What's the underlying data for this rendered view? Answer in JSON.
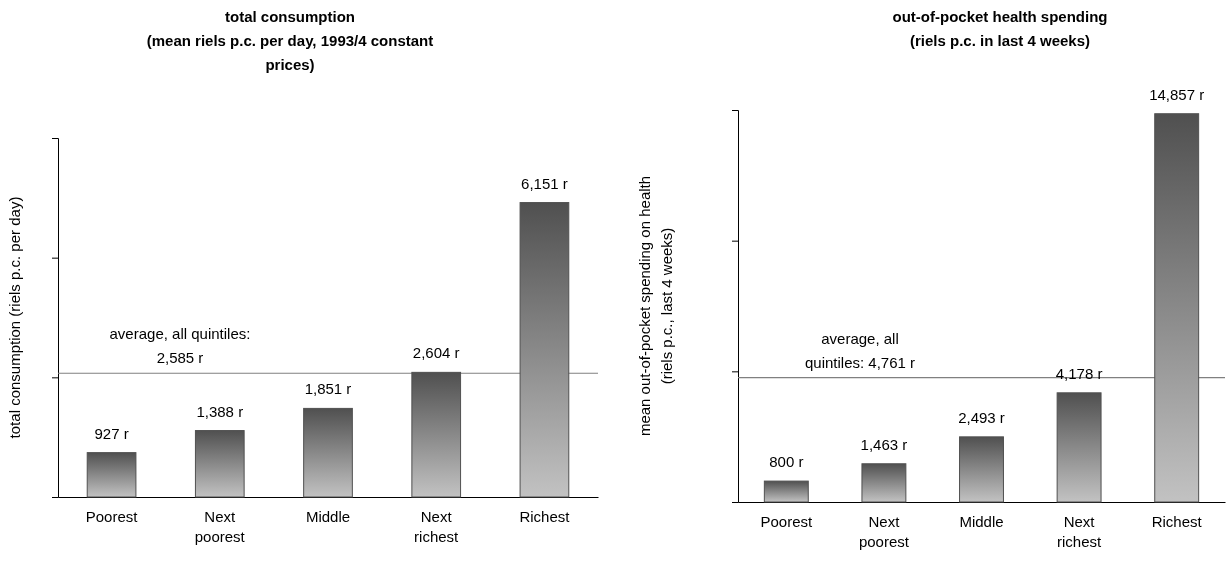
{
  "chart_data": [
    {
      "type": "bar",
      "title": "total consumption\n(mean riels p.c. per day, 1993/4 constant\nprices)",
      "ylabel": "total consumption (riels p.c. per day)",
      "categories": [
        "Poorest",
        "Next poorest",
        "Middle",
        "Next richest",
        "Richest"
      ],
      "values": [
        927,
        1388,
        1851,
        2604,
        6151
      ],
      "value_labels": [
        "927 r",
        "1,388 r",
        "1,851 r",
        "2,604 r",
        "6,151 r"
      ],
      "color": "#505050",
      "ylim": [
        0,
        7500
      ],
      "yticks": [
        {
          "value": 0,
          "label": null
        },
        {
          "value": 2500,
          "label": null
        },
        {
          "value": 5000,
          "label": null
        },
        {
          "value": 7500,
          "label": null
        }
      ],
      "tick_labels": "x",
      "grid": false,
      "ref_lines": [
        {
          "axis": "y",
          "value": 2585,
          "label": "average, all quintiles: 2,585 r",
          "color": "#808080"
        }
      ]
    },
    {
      "type": "bar",
      "title": "out-of-pocket health spending\n(riels p.c. in last 4 weeks)",
      "ylabel": "mean out-of-pocket spending on health\n(riels p.c., last 4 weeks)",
      "categories": [
        "Poorest",
        "Next poorest",
        "Middle",
        "Next richest",
        "Richest"
      ],
      "values": [
        800,
        1463,
        2493,
        4178,
        14857
      ],
      "value_labels": [
        "800 r",
        "1,463 r",
        "2,493 r",
        "4,178 r",
        "14,857 r"
      ],
      "color": "#505050",
      "ylim": [
        0,
        15000
      ],
      "yticks": [
        {
          "value": 0,
          "label": null
        },
        {
          "value": 5000,
          "label": null
        },
        {
          "value": 10000,
          "label": null
        },
        {
          "value": 15000,
          "label": null
        }
      ],
      "tick_labels": "x",
      "grid": false,
      "ref_lines": [
        {
          "axis": "y",
          "value": 4761,
          "label": "average, all quintiles: 4,761 r",
          "color": "#808080"
        }
      ]
    }
  ]
}
